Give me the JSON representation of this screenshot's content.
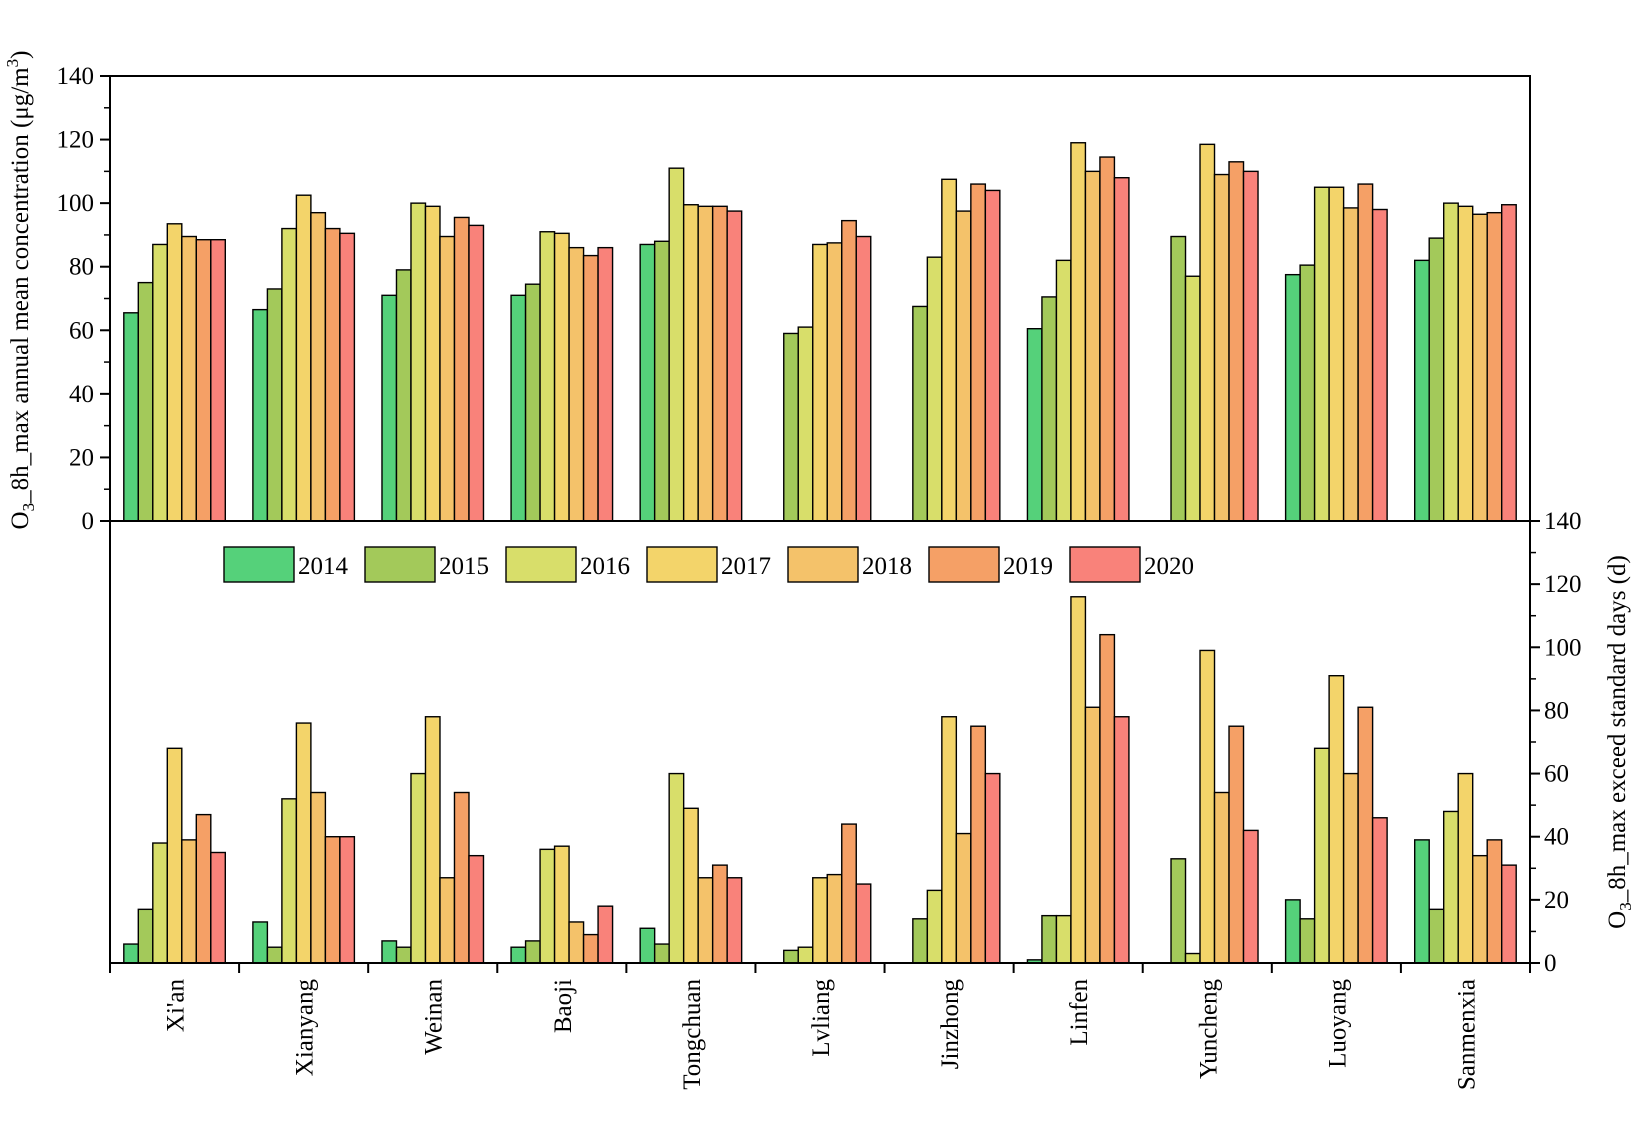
{
  "chart_data": [
    {
      "type": "bar",
      "panel": "top",
      "ylabel": "O3_8h_max annual mean concentration (μg/m3)",
      "ylabel_parts": {
        "pre": "O",
        "sub": "3",
        "mid": "_8h_max annual mean concentration (μg/m",
        "sup": "3",
        "post": ")"
      },
      "ylim": [
        0,
        140
      ],
      "yticks": [
        0,
        20,
        40,
        60,
        80,
        100,
        120,
        140
      ],
      "categories": [
        "Xi'an",
        "Xianyang",
        "Weinan",
        "Baoji",
        "Tongchuan",
        "Lvliang",
        "Jinzhong",
        "Linfen",
        "Yuncheng",
        "Luoyang",
        "Sanmenxia"
      ],
      "series": [
        {
          "name": "2014",
          "values": [
            65.5,
            66.5,
            71,
            71,
            87,
            null,
            null,
            60.5,
            null,
            77.5,
            82
          ]
        },
        {
          "name": "2015",
          "values": [
            75,
            73,
            79,
            74.5,
            88,
            59,
            67.5,
            70.5,
            89.5,
            80.5,
            89
          ]
        },
        {
          "name": "2016",
          "values": [
            87,
            92,
            100,
            91,
            111,
            61,
            83,
            82,
            77,
            105,
            100
          ]
        },
        {
          "name": "2017",
          "values": [
            93.5,
            102.5,
            99,
            90.5,
            99.5,
            87,
            107.5,
            119,
            118.5,
            105,
            99
          ]
        },
        {
          "name": "2018",
          "values": [
            89.5,
            97,
            89.5,
            86,
            99,
            87.5,
            97.5,
            110,
            109,
            98.5,
            96.5
          ]
        },
        {
          "name": "2019",
          "values": [
            88.5,
            92,
            95.5,
            83.5,
            99,
            94.5,
            106,
            114.5,
            113,
            106,
            97
          ]
        },
        {
          "name": "2020",
          "values": [
            88.5,
            90.5,
            93,
            86,
            97.5,
            89.5,
            104,
            108,
            110,
            98,
            99.5
          ]
        }
      ]
    },
    {
      "type": "bar",
      "panel": "bottom",
      "ylabel": "O3_8h_max exceed standard days (d)",
      "ylabel_parts": {
        "pre": "O",
        "sub": "3",
        "mid": "_8h_max exceed standard days (d)",
        "sup": "",
        "post": ""
      },
      "ylim": [
        0,
        140
      ],
      "yticks": [
        0,
        20,
        40,
        60,
        80,
        100,
        120,
        140
      ],
      "axis_side": "right",
      "categories": [
        "Xi'an",
        "Xianyang",
        "Weinan",
        "Baoji",
        "Tongchuan",
        "Lvliang",
        "Jinzhong",
        "Linfen",
        "Yuncheng",
        "Luoyang",
        "Sanmenxia"
      ],
      "series": [
        {
          "name": "2014",
          "values": [
            6,
            13,
            7,
            5,
            11,
            null,
            null,
            1,
            null,
            20,
            39
          ]
        },
        {
          "name": "2015",
          "values": [
            17,
            5,
            5,
            7,
            6,
            4,
            14,
            15,
            33,
            14,
            17
          ]
        },
        {
          "name": "2016",
          "values": [
            38,
            52,
            60,
            36,
            60,
            5,
            23,
            15,
            3,
            68,
            48
          ]
        },
        {
          "name": "2017",
          "values": [
            68,
            76,
            78,
            37,
            49,
            27,
            78,
            116,
            99,
            91,
            60
          ]
        },
        {
          "name": "2018",
          "values": [
            39,
            54,
            27,
            13,
            27,
            28,
            41,
            81,
            54,
            60,
            34
          ]
        },
        {
          "name": "2019",
          "values": [
            47,
            40,
            54,
            9,
            31,
            44,
            75,
            104,
            75,
            81,
            39
          ]
        },
        {
          "name": "2020",
          "values": [
            35,
            40,
            34,
            18,
            27,
            25,
            60,
            78,
            42,
            46,
            31
          ]
        }
      ]
    }
  ],
  "legend": {
    "entries": [
      "2014",
      "2015",
      "2016",
      "2017",
      "2018",
      "2019",
      "2020"
    ],
    "colors": [
      "#55d17a",
      "#a3c95a",
      "#d8de6a",
      "#f3d46a",
      "#f4c26a",
      "#f5a066",
      "#f9827a"
    ]
  }
}
